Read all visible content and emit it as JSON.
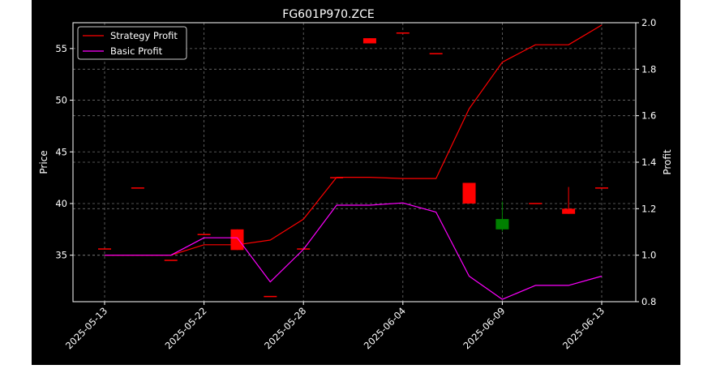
{
  "chart_data": {
    "type": "candlestick+line",
    "title": "FG601P970.ZCE",
    "ylabel_left": "Price",
    "ylabel_right": "Profit",
    "ylim_left": [
      30.5,
      57.5
    ],
    "ylim_right": [
      0.8,
      2.0
    ],
    "left_ticks": [
      35,
      40,
      45,
      50,
      55
    ],
    "right_ticks": [
      0.8,
      1.0,
      1.2,
      1.4,
      1.6,
      1.8,
      2.0
    ],
    "x_ticks": [
      {
        "i": 0,
        "label": "2025-05-13"
      },
      {
        "i": 6,
        "label": "2025-05-22"
      },
      {
        "i": 12,
        "label": "2025-05-28"
      },
      {
        "i": 18,
        "label": "2025-06-04"
      },
      {
        "i": 24,
        "label": "2025-06-09"
      },
      {
        "i": 30,
        "label": "2025-06-13"
      }
    ],
    "grid": true,
    "legend_position": "top-left",
    "colors": {
      "background": "#000000",
      "axes": "#ffffff",
      "text": "#ffffff",
      "grid": "#6e6e6e",
      "up": "#008000",
      "down": "#ff0000",
      "strategy": "#ff0000",
      "basic": "#ff00ff"
    },
    "candles": [
      {
        "i": 0,
        "open": 35.6,
        "high": 35.6,
        "low": 35.6,
        "close": 35.6
      },
      {
        "i": 2,
        "open": 41.5,
        "high": 41.5,
        "low": 41.5,
        "close": 41.5
      },
      {
        "i": 4,
        "open": 34.5,
        "high": 34.5,
        "low": 34.5,
        "close": 34.5
      },
      {
        "i": 6,
        "open": 37.0,
        "high": 37.0,
        "low": 37.0,
        "close": 37.0
      },
      {
        "i": 8,
        "open": 37.5,
        "high": 37.5,
        "low": 35.5,
        "close": 35.5
      },
      {
        "i": 10,
        "open": 31.0,
        "high": 31.0,
        "low": 31.0,
        "close": 31.0
      },
      {
        "i": 12,
        "open": 35.6,
        "high": 35.6,
        "low": 35.6,
        "close": 35.6
      },
      {
        "i": 14,
        "open": 42.5,
        "high": 42.5,
        "low": 42.5,
        "close": 42.5
      },
      {
        "i": 16,
        "open": 56.0,
        "high": 56.0,
        "low": 55.5,
        "close": 55.5
      },
      {
        "i": 18,
        "open": 56.5,
        "high": 56.5,
        "low": 56.5,
        "close": 56.5
      },
      {
        "i": 20,
        "open": 54.5,
        "high": 54.5,
        "low": 54.5,
        "close": 54.5
      },
      {
        "i": 22,
        "open": 42.0,
        "high": 42.0,
        "low": 40.0,
        "close": 40.0
      },
      {
        "i": 24,
        "open": 37.5,
        "high": 40.2,
        "low": 37.3,
        "close": 38.5
      },
      {
        "i": 26,
        "open": 40.0,
        "high": 40.0,
        "low": 40.0,
        "close": 40.0
      },
      {
        "i": 28,
        "open": 39.5,
        "high": 41.6,
        "low": 39.0,
        "close": 39.0
      },
      {
        "i": 30,
        "open": 41.5,
        "high": 41.5,
        "low": 41.5,
        "close": 41.5
      }
    ],
    "series": [
      {
        "name": "Strategy Profit",
        "x": [
          0,
          2,
          4,
          6,
          8,
          10,
          12,
          14,
          16,
          18,
          20,
          22,
          24,
          26,
          28,
          30
        ],
        "values": [
          1.0,
          1.0,
          1.0,
          1.045,
          1.045,
          1.065,
          1.155,
          1.335,
          1.335,
          1.33,
          1.33,
          1.63,
          1.83,
          1.905,
          1.905,
          1.99
        ]
      },
      {
        "name": "Basic Profit",
        "x": [
          0,
          2,
          4,
          6,
          8,
          10,
          12,
          14,
          16,
          18,
          20,
          22,
          24,
          26,
          28,
          30
        ],
        "values": [
          1.0,
          1.0,
          1.0,
          1.075,
          1.075,
          0.885,
          1.025,
          1.215,
          1.215,
          1.225,
          1.185,
          0.91,
          0.81,
          0.87,
          0.87,
          0.91
        ]
      }
    ]
  }
}
